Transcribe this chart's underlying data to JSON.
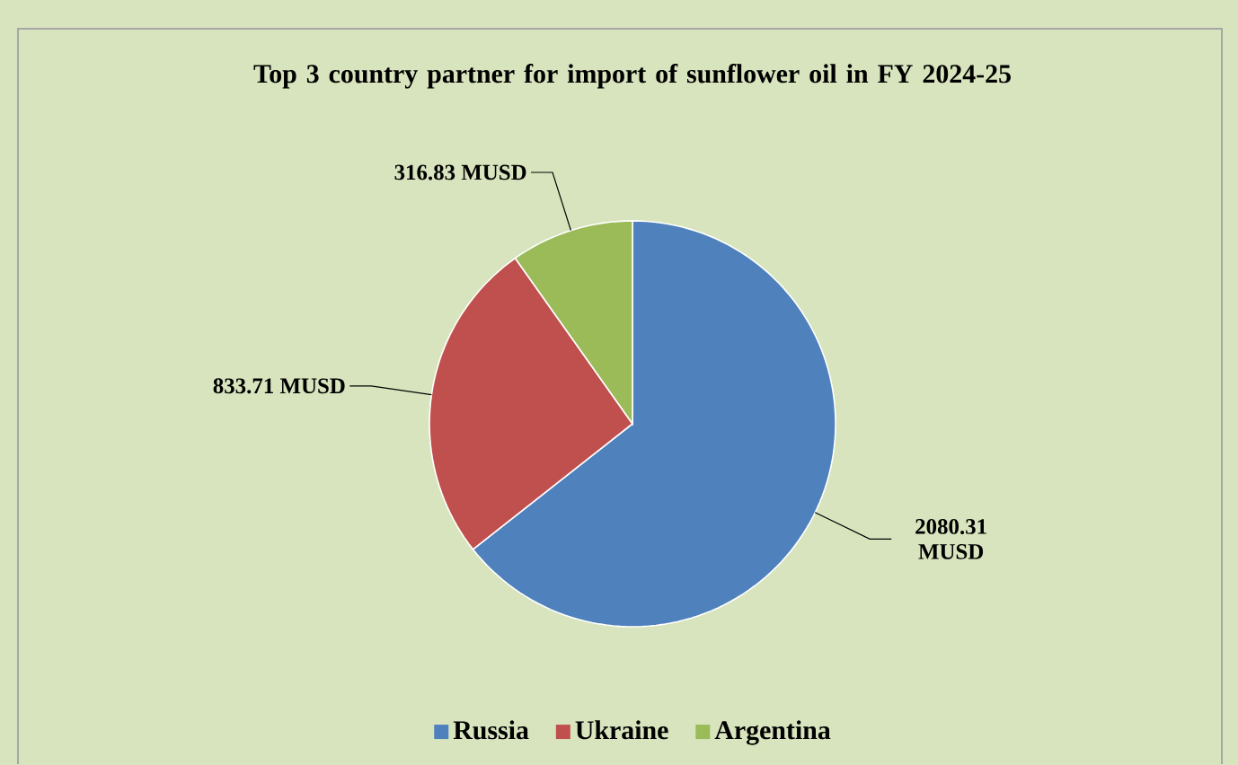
{
  "chart_data": {
    "type": "pie",
    "title": "Top 3 country partner for import of sunflower oil in FY 2024-25",
    "categories": [
      "Russia",
      "Ukraine",
      "Argentina"
    ],
    "values": [
      2080.31,
      833.71,
      316.83
    ],
    "value_labels": [
      "2080.31 MUSD",
      "833.71 MUSD",
      "316.83 MUSD"
    ],
    "colors": [
      "#4f81bd",
      "#c0504d",
      "#9bbb59"
    ],
    "legend": "bottom"
  }
}
